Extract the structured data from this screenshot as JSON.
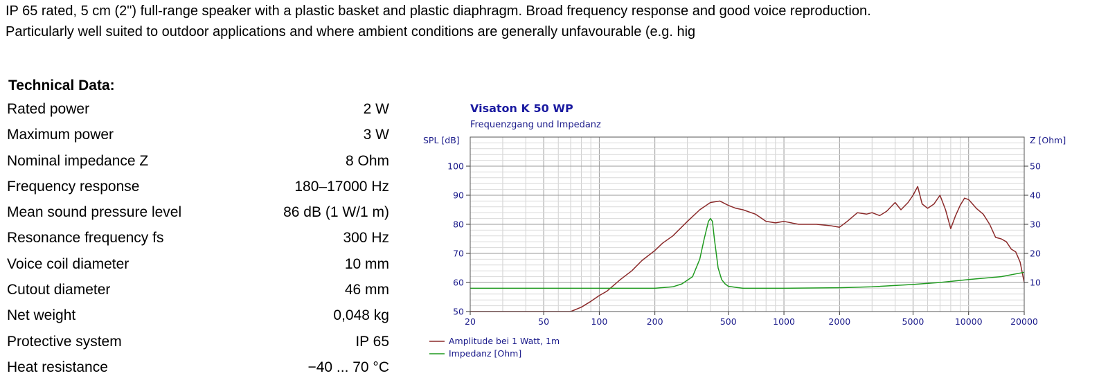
{
  "description": {
    "line1": "IP 65 rated, 5 cm (2\") full-range speaker with a plastic basket and plastic diaphragm. Broad frequency response and good voice reproduction.",
    "line2": "Particularly well suited to outdoor applications and where ambient conditions are generally unfavourable (e.g. hig"
  },
  "technical_data": {
    "heading": "Technical Data:",
    "rows": [
      {
        "label": "Rated power",
        "value": "2 W"
      },
      {
        "label": "Maximum power",
        "value": "3 W"
      },
      {
        "label": "Nominal impedance Z",
        "value": "8 Ohm"
      },
      {
        "label": "Frequency response",
        "value": "180–17000 Hz"
      },
      {
        "label": "Mean sound pressure level",
        "value": "86 dB (1 W/1 m)"
      },
      {
        "label": "Resonance frequency fs",
        "value": "300 Hz"
      },
      {
        "label": "Voice coil diameter",
        "value": "10 mm"
      },
      {
        "label": "Cutout diameter",
        "value": "46 mm"
      },
      {
        "label": "Net weight",
        "value": "0,048 kg"
      },
      {
        "label": "Protective system",
        "value": "IP 65"
      },
      {
        "label": "Heat resistance",
        "value": "−40 ... 70 °C"
      }
    ]
  },
  "chart_data": {
    "type": "line",
    "title": "Visaton K 50 WP",
    "subtitle": "Frequenzgang und Impedanz",
    "ylabel": "SPL [dB]",
    "y2label": "Z [Ohm]",
    "xscale": "log",
    "xlim": [
      20,
      20000
    ],
    "ylim": [
      50,
      110
    ],
    "y2lim": [
      0,
      60
    ],
    "xticks": [
      20,
      50,
      100,
      200,
      500,
      1000,
      2000,
      5000,
      10000,
      20000
    ],
    "xtick_labels": [
      "20",
      "50",
      "100",
      "200",
      "500",
      "1000",
      "2000",
      "5000",
      "10000",
      "20000"
    ],
    "yticks": [
      50,
      60,
      70,
      80,
      90,
      100
    ],
    "yticks_labels": [
      "50",
      "60",
      "70",
      "80",
      "90",
      "100"
    ],
    "y2ticks": [
      10,
      20,
      30,
      40,
      50
    ],
    "y2ticks_labels": [
      "10",
      "20",
      "30",
      "40",
      "50"
    ],
    "grid": true,
    "legend_position": "bottom-left",
    "colors": {
      "amplitude": "#8b2a2a",
      "impedance": "#1f9a1f",
      "axis_text": "#1a1a8a",
      "title": "#1a1aa0"
    },
    "series": [
      {
        "name": "Amplitude bei 1 Watt, 1m",
        "axis": "left",
        "x": [
          20,
          70,
          80,
          90,
          100,
          110,
          130,
          150,
          170,
          200,
          220,
          250,
          300,
          350,
          400,
          450,
          500,
          550,
          600,
          700,
          800,
          900,
          1000,
          1200,
          1500,
          1800,
          2000,
          2200,
          2500,
          2800,
          3000,
          3300,
          3600,
          4000,
          4300,
          4700,
          5000,
          5300,
          5600,
          6000,
          6500,
          7000,
          7500,
          8000,
          8500,
          9000,
          9500,
          10000,
          10500,
          11000,
          12000,
          13000,
          14000,
          15000,
          16000,
          17000,
          18000,
          19000,
          20000
        ],
        "values": [
          50,
          50,
          51.5,
          53.5,
          55.5,
          57,
          61,
          64,
          67.5,
          71,
          73.5,
          76,
          81,
          85,
          87.5,
          88,
          86.5,
          85.5,
          85,
          83.5,
          81,
          80.5,
          81,
          80,
          80,
          79.5,
          79,
          81,
          84,
          83.5,
          84,
          83,
          84.5,
          87.5,
          85,
          87.5,
          90,
          93,
          87,
          85.5,
          87,
          90,
          85,
          78.5,
          83,
          86.5,
          89,
          88.5,
          87,
          85.5,
          83.5,
          80,
          75.5,
          75,
          74,
          71.5,
          70.5,
          67,
          60
        ]
      },
      {
        "name": "Impedanz [Ohm]",
        "axis": "right",
        "x": [
          20,
          100,
          200,
          250,
          280,
          320,
          350,
          370,
          390,
          400,
          410,
          420,
          440,
          460,
          480,
          500,
          550,
          600,
          800,
          1000,
          2000,
          3000,
          5000,
          7000,
          10000,
          15000,
          20000
        ],
        "values": [
          8,
          8,
          8,
          8.5,
          9.5,
          12,
          18,
          25,
          31,
          32,
          31,
          25,
          15,
          11,
          9.5,
          8.7,
          8.3,
          8,
          8,
          8,
          8.2,
          8.5,
          9.3,
          10,
          11,
          12,
          13.5
        ]
      }
    ]
  }
}
